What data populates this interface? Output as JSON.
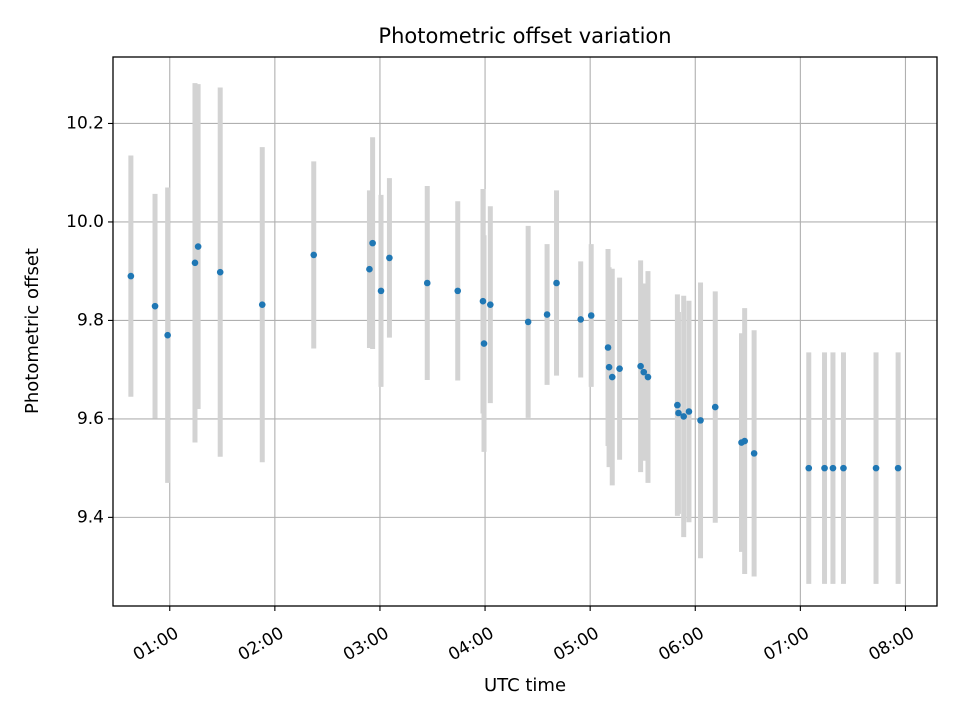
{
  "chart_data": {
    "type": "scatter",
    "title": "Photometric offset variation",
    "xlabel": "UTC time",
    "ylabel": "Photometric offset",
    "xlim": [
      0.46,
      8.3
    ],
    "ylim": [
      9.22,
      10.335
    ],
    "grid": true,
    "x_ticks": [
      {
        "value": 1,
        "label": "01:00"
      },
      {
        "value": 2,
        "label": "02:00"
      },
      {
        "value": 3,
        "label": "03:00"
      },
      {
        "value": 4,
        "label": "04:00"
      },
      {
        "value": 5,
        "label": "05:00"
      },
      {
        "value": 6,
        "label": "06:00"
      },
      {
        "value": 7,
        "label": "07:00"
      },
      {
        "value": 8,
        "label": "08:00"
      }
    ],
    "y_ticks": [
      {
        "value": 9.4,
        "label": "9.4"
      },
      {
        "value": 9.6,
        "label": "9.6"
      },
      {
        "value": 9.8,
        "label": "9.8"
      },
      {
        "value": 10.0,
        "label": "10.0"
      },
      {
        "value": 10.2,
        "label": "10.2"
      }
    ],
    "colors": {
      "points": "#1f77b4",
      "errorbars": "#d3d3d3",
      "grid": "#b0b0b0"
    },
    "series": [
      {
        "name": "offset",
        "x": [
          0.63,
          0.86,
          0.98,
          1.24,
          1.27,
          1.48,
          1.88,
          2.37,
          2.9,
          2.93,
          3.01,
          3.09,
          3.45,
          3.74,
          3.98,
          3.99,
          4.05,
          4.41,
          4.59,
          4.68,
          4.91,
          5.01,
          5.17,
          5.18,
          5.21,
          5.28,
          5.48,
          5.51,
          5.55,
          5.83,
          5.84,
          5.89,
          5.94,
          6.05,
          6.19,
          6.44,
          6.47,
          6.56,
          7.08,
          7.23,
          7.31,
          7.41,
          7.72,
          7.93
        ],
        "y": [
          9.89,
          9.829,
          9.77,
          9.917,
          9.95,
          9.898,
          9.832,
          9.933,
          9.904,
          9.957,
          9.86,
          9.927,
          9.876,
          9.86,
          9.839,
          9.753,
          9.832,
          9.797,
          9.812,
          9.876,
          9.802,
          9.81,
          9.745,
          9.705,
          9.685,
          9.702,
          9.707,
          9.695,
          9.685,
          9.628,
          9.612,
          9.605,
          9.615,
          9.597,
          9.624,
          9.552,
          9.555,
          9.53,
          9.5,
          9.5,
          9.5,
          9.5,
          9.5,
          9.5
        ],
        "yerr": [
          0.245,
          0.228,
          0.3,
          0.365,
          0.33,
          0.375,
          0.32,
          0.19,
          0.16,
          0.215,
          0.195,
          0.162,
          0.197,
          0.182,
          0.228,
          0.22,
          0.2,
          0.195,
          0.143,
          0.188,
          0.118,
          0.145,
          0.2,
          0.203,
          0.22,
          0.185,
          0.215,
          0.18,
          0.215,
          0.225,
          0.205,
          0.245,
          0.225,
          0.28,
          0.235,
          0.222,
          0.27,
          0.25,
          0.235,
          0.235,
          0.235,
          0.235,
          0.235,
          0.235
        ]
      }
    ]
  }
}
